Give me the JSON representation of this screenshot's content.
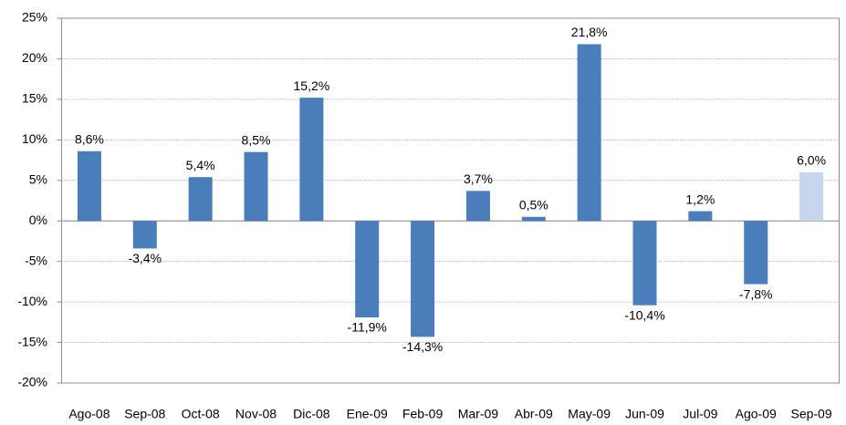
{
  "chart_data": {
    "type": "bar",
    "categories": [
      "Ago-08",
      "Sep-08",
      "Oct-08",
      "Nov-08",
      "Dic-08",
      "Ene-09",
      "Feb-09",
      "Mar-09",
      "Abr-09",
      "May-09",
      "Jun-09",
      "Jul-09",
      "Ago-09",
      "Sep-09"
    ],
    "values": [
      8.6,
      -3.4,
      5.4,
      8.5,
      15.2,
      -11.9,
      -14.3,
      3.7,
      0.5,
      21.8,
      -10.4,
      1.2,
      -7.8,
      6.0
    ],
    "value_labels": [
      "8,6%",
      "-3,4%",
      "5,4%",
      "8,5%",
      "15,2%",
      "-11,9%",
      "-14,3%",
      "3,7%",
      "0,5%",
      "21,8%",
      "-10,4%",
      "1,2%",
      "-7,8%",
      "6,0%"
    ],
    "colors": [
      "#4a7ebb",
      "#4a7ebb",
      "#4a7ebb",
      "#4a7ebb",
      "#4a7ebb",
      "#4a7ebb",
      "#4a7ebb",
      "#4a7ebb",
      "#4a7ebb",
      "#4a7ebb",
      "#4a7ebb",
      "#4a7ebb",
      "#4a7ebb",
      "#c6d7ec"
    ],
    "ylim": [
      -20,
      25
    ],
    "yticks": [
      {
        "value": -20,
        "label": "-20%"
      },
      {
        "value": -15,
        "label": "-15%"
      },
      {
        "value": -10,
        "label": "-10%"
      },
      {
        "value": -5,
        "label": "-5%"
      },
      {
        "value": 0,
        "label": "0%"
      },
      {
        "value": 5,
        "label": "5%"
      },
      {
        "value": 10,
        "label": "10%"
      },
      {
        "value": 15,
        "label": "15%"
      },
      {
        "value": 20,
        "label": "20%"
      },
      {
        "value": 25,
        "label": "25%"
      }
    ],
    "grid": true
  }
}
